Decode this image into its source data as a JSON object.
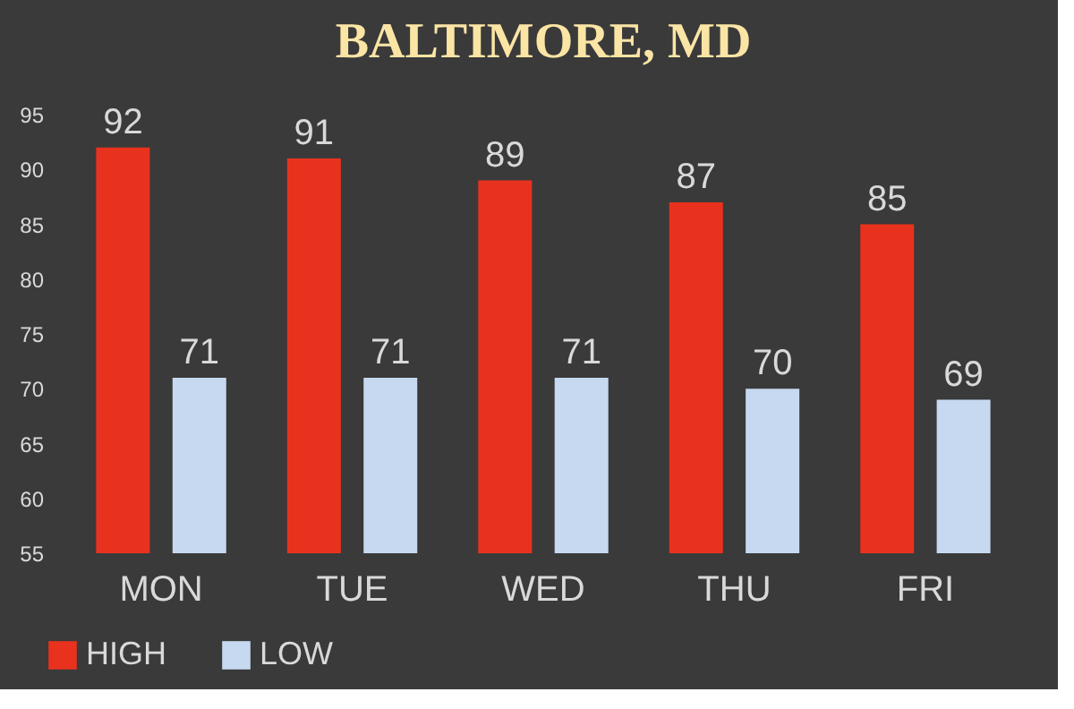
{
  "chart_data": {
    "type": "bar",
    "title": "BALTIMORE,  MD",
    "categories": [
      "MON",
      "TUE",
      "WED",
      "THU",
      "FRI"
    ],
    "series": [
      {
        "name": "HIGH",
        "color": "#e8321e",
        "values": [
          92,
          91,
          89,
          87,
          85
        ]
      },
      {
        "name": "LOW",
        "color": "#c6d9f0",
        "values": [
          71,
          71,
          71,
          70,
          69
        ]
      }
    ],
    "ylim": [
      55,
      95
    ],
    "yticks": [
      55,
      60,
      65,
      70,
      75,
      80,
      85,
      90,
      95
    ],
    "grid": false,
    "legend": "bottom",
    "data_labels": true
  }
}
